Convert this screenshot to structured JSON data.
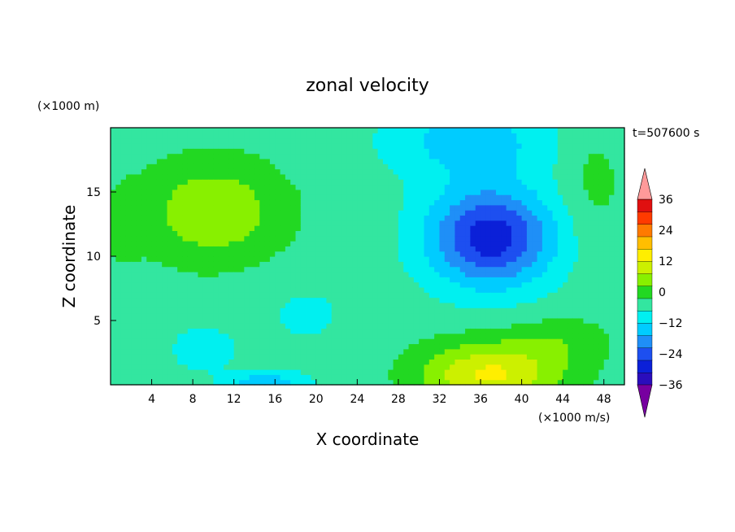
{
  "chart_data": {
    "type": "heatmap",
    "title": "zonal velocity",
    "xlabel": "X coordinate",
    "ylabel": "Z coordinate",
    "x_unit": "(×1000 m/s)",
    "y_unit": "(×1000 m)",
    "time_label": "t=507600 s",
    "xlim": [
      0,
      50
    ],
    "ylim": [
      0,
      20
    ],
    "x_ticks": [
      4,
      8,
      12,
      16,
      20,
      24,
      28,
      32,
      36,
      40,
      44,
      48
    ],
    "y_ticks": [
      5,
      10,
      15
    ],
    "colorbar": {
      "ticks": [
        36,
        24,
        12,
        0,
        -12,
        -24,
        -36
      ],
      "levels": [
        -42,
        -36,
        -30,
        -24,
        -18,
        -12,
        -6,
        0,
        6,
        12,
        18,
        24,
        30,
        36,
        42
      ],
      "colors": [
        "#7700a0",
        "#2a0dbc",
        "#0b20d8",
        "#1d4ff0",
        "#1f8ff7",
        "#00ccff",
        "#00f0f0",
        "#33e6a0",
        "#22d822",
        "#88f000",
        "#ccf000",
        "#ffee00",
        "#ffbe00",
        "#ff7a00",
        "#ff3a00",
        "#e01010",
        "#ff9a9a"
      ]
    },
    "features": [
      {
        "x": 10,
        "z": 13.5,
        "u": 14,
        "sx": 7,
        "sz": 4
      },
      {
        "x": 37,
        "z": 11.5,
        "u": -31,
        "sx": 6,
        "sz": 3.8
      },
      {
        "x": 37,
        "z": 0.8,
        "u": 22,
        "sx": 7,
        "sz": 2.6
      },
      {
        "x": 9,
        "z": 2.8,
        "u": -8,
        "sx": 3,
        "sz": 1.6
      },
      {
        "x": 15,
        "z": 0.0,
        "u": -14,
        "sx": 4,
        "sz": 1.0
      },
      {
        "x": 19,
        "z": 5.5,
        "u": -4,
        "sx": 5,
        "sz": 3.0
      },
      {
        "x": 35,
        "z": 19,
        "u": -12,
        "sx": 8,
        "sz": 3.0
      },
      {
        "x": 47,
        "z": 16,
        "u": 5,
        "sx": 3,
        "sz": 5.0
      },
      {
        "x": 44,
        "z": 3.5,
        "u": 6,
        "sx": 5,
        "sz": 2.0
      },
      {
        "x": 1,
        "z": 12,
        "u": 3,
        "sx": 2,
        "sz": 4
      }
    ]
  }
}
